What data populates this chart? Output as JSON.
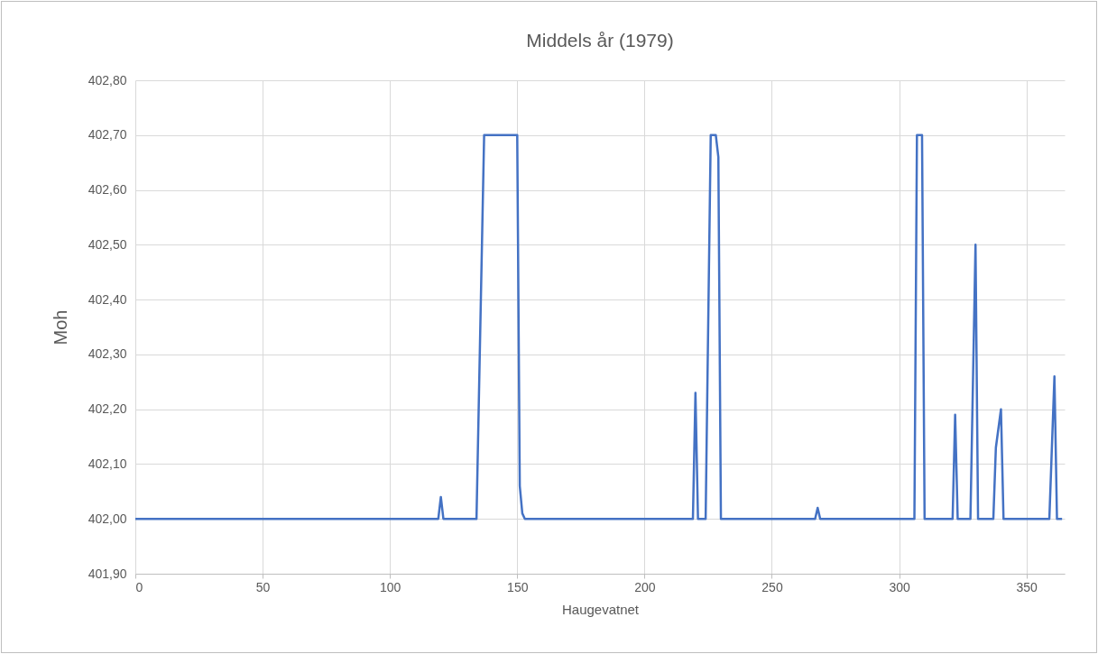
{
  "chart_data": {
    "type": "line",
    "title": "Middels år (1979)",
    "xlabel": "Haugevatnet",
    "ylabel": "Moh",
    "x": [
      0,
      119,
      120,
      121,
      134,
      137,
      150,
      151,
      152,
      153,
      219,
      220,
      221,
      224,
      226,
      228,
      229,
      230,
      267,
      268,
      269,
      306,
      307,
      309,
      310,
      321,
      322,
      323,
      328,
      330,
      331,
      337,
      338,
      340,
      341,
      359,
      361,
      362,
      364
    ],
    "series": [
      {
        "color": "#4472c4",
        "values": [
          402,
          402,
          402.04,
          402,
          402,
          402.7,
          402.7,
          402.06,
          402.01,
          402,
          402,
          402.23,
          402,
          402,
          402.7,
          402.7,
          402.66,
          402,
          402,
          402.02,
          402,
          402,
          402.7,
          402.7,
          402,
          402,
          402.19,
          402,
          402,
          402.5,
          402,
          402,
          402.13,
          402.2,
          402,
          402,
          402.26,
          402,
          402
        ]
      }
    ],
    "xlim": [
      0,
      365
    ],
    "xticks": [
      0,
      50,
      100,
      150,
      200,
      250,
      300,
      350
    ],
    "ylim": [
      401.9,
      402.8
    ],
    "yticks": [
      {
        "value": 401.9,
        "label": "401,90"
      },
      {
        "value": 402,
        "label": "402,00"
      },
      {
        "value": 402.1,
        "label": "402,10"
      },
      {
        "value": 402.2,
        "label": "402,20"
      },
      {
        "value": 402.3,
        "label": "402,30"
      },
      {
        "value": 402.4,
        "label": "402,40"
      },
      {
        "value": 402.5,
        "label": "402,50"
      },
      {
        "value": 402.6,
        "label": "402,60"
      },
      {
        "value": 402.7,
        "label": "402,70"
      },
      {
        "value": 402.8,
        "label": "402,80"
      }
    ],
    "grid": true,
    "legend": false,
    "marker": "none",
    "line_style": "solid"
  }
}
